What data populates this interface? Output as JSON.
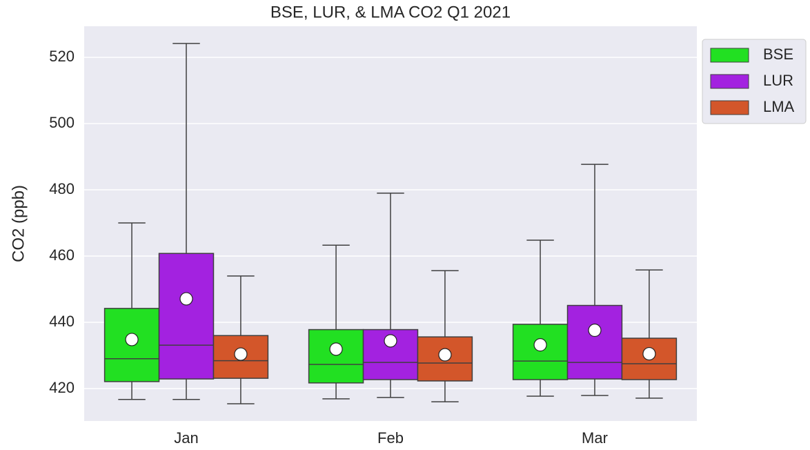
{
  "chart_data": {
    "type": "box",
    "title": "BSE, LUR, & LMA CO2 Q1 2021",
    "y_label": "CO2 (ppb)",
    "categories": [
      "Jan",
      "Feb",
      "Mar"
    ],
    "series": [
      {
        "name": "BSE",
        "color": "#22e022",
        "whislo": [
          416.7,
          416.9,
          417.7
        ],
        "q1": [
          422.1,
          421.7,
          422.7
        ],
        "median": [
          429.0,
          427.3,
          428.3
        ],
        "q3": [
          444.2,
          437.8,
          439.4
        ],
        "whishi": [
          470.0,
          463.3,
          464.8
        ],
        "mean": [
          434.8,
          431.9,
          433.2
        ]
      },
      {
        "name": "LUR",
        "color": "#a322e0",
        "whislo": [
          416.7,
          417.3,
          417.9
        ],
        "q1": [
          422.9,
          422.7,
          422.9
        ],
        "median": [
          433.1,
          427.9,
          427.9
        ],
        "q3": [
          460.8,
          437.8,
          445.1
        ],
        "whishi": [
          524.2,
          479.0,
          487.7
        ],
        "mean": [
          447.1,
          434.4,
          437.6
        ]
      },
      {
        "name": "LMA",
        "color": "#d3562a",
        "whislo": [
          415.4,
          416.0,
          417.1
        ],
        "q1": [
          423.1,
          422.3,
          422.7
        ],
        "median": [
          428.4,
          427.7,
          427.5
        ],
        "q3": [
          436.0,
          435.6,
          435.2
        ],
        "whishi": [
          454.0,
          455.6,
          455.8
        ],
        "mean": [
          430.4,
          430.2,
          430.5
        ]
      }
    ],
    "ylim": [
      410.2,
      529.4
    ],
    "yticks": [
      420,
      440,
      460,
      480,
      500,
      520
    ],
    "grid": true,
    "legend": "outside upper right"
  }
}
